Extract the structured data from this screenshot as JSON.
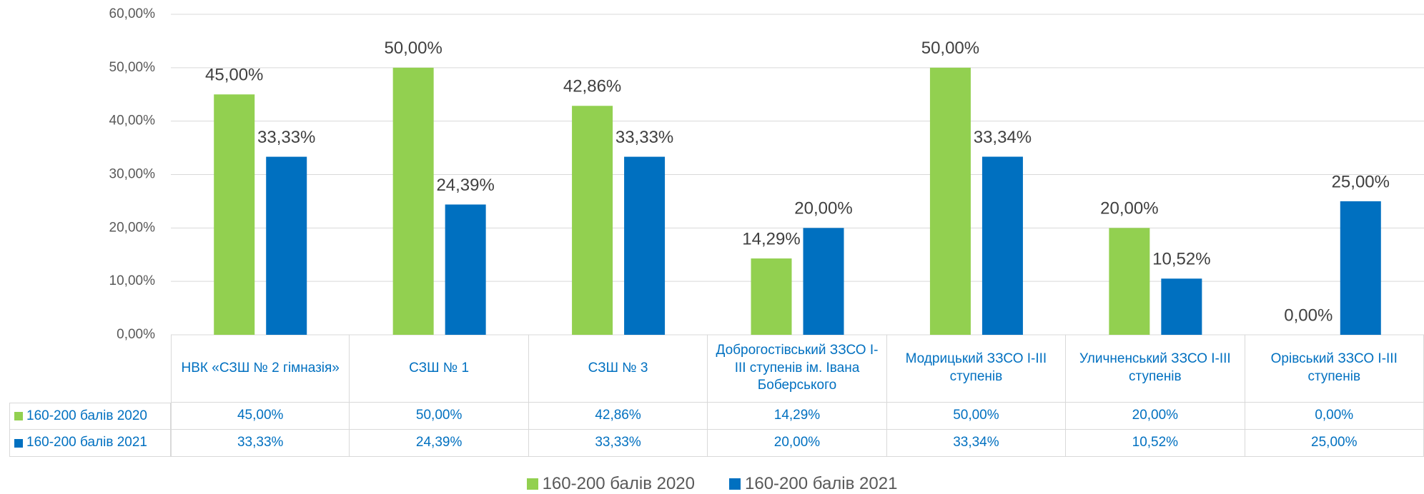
{
  "chart_data": {
    "type": "bar",
    "categories": [
      "НВК «СЗШ № 2 гімназія»",
      "СЗШ № 1",
      "СЗШ № 3",
      "Доброгостівський ЗЗСО І-ІІІ ступенів ім. Івана Боберського",
      "Модрицький ЗЗСО І-ІІІ ступенів",
      "Уличненський ЗЗСО І-ІІІ ступенів",
      "Орівський ЗЗСО І-ІІІ ступенів"
    ],
    "series": [
      {
        "name": "160-200 балів 2020",
        "color": "#92d050",
        "values": [
          45,
          50,
          42.86,
          14.29,
          50,
          20,
          0
        ],
        "value_labels": [
          "45,00%",
          "50,00%",
          "42,86%",
          "14,29%",
          "50,00%",
          "20,00%",
          "0,00%"
        ]
      },
      {
        "name": "160-200 балів 2021",
        "color": "#0070c0",
        "values": [
          33.33,
          24.39,
          33.33,
          20,
          33.34,
          10.52,
          25
        ],
        "value_labels": [
          "33,33%",
          "24,39%",
          "33,33%",
          "20,00%",
          "33,34%",
          "10,52%",
          "25,00%"
        ]
      }
    ],
    "ylim": [
      0,
      60
    ],
    "yticks": [
      {
        "value": 0,
        "label": "0,00%"
      },
      {
        "value": 10,
        "label": "10,00%"
      },
      {
        "value": 20,
        "label": "20,00%"
      },
      {
        "value": 30,
        "label": "30,00%"
      },
      {
        "value": 40,
        "label": "40,00%"
      },
      {
        "value": 50,
        "label": "50,00%"
      },
      {
        "value": 60,
        "label": "60,00%"
      }
    ],
    "grid": true,
    "legend": "bottom",
    "data_table": true
  }
}
